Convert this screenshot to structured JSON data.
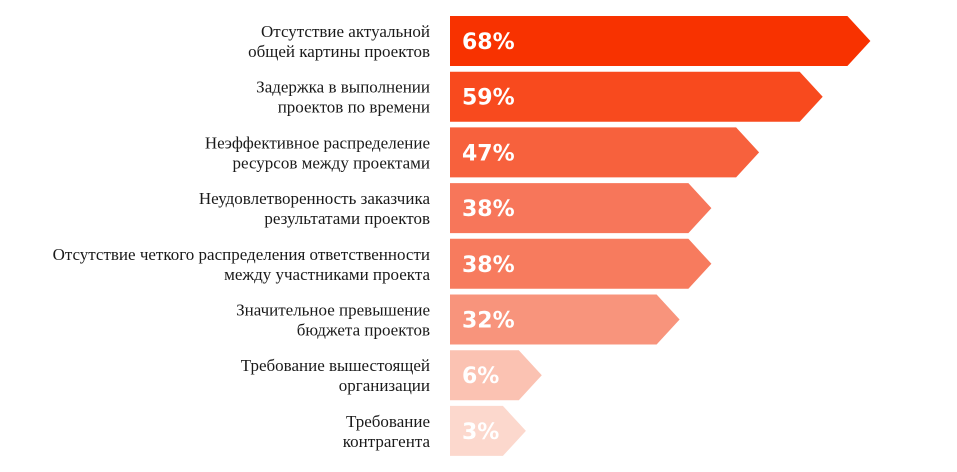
{
  "chart_data": {
    "type": "arrow-bar",
    "categories": [
      [
        "Отсутствие актуальной",
        "общей картины проектов"
      ],
      [
        "Задержка в выполнении",
        "проектов по времени"
      ],
      [
        "Неэффективное распределение",
        "ресурсов между проектами"
      ],
      [
        "Неудовлетворенность заказчика",
        "результатами проектов"
      ],
      [
        "Отсутствие четкого распределения ответственности",
        "между участниками проекта"
      ],
      [
        "Значительное превышение",
        "бюджета проектов"
      ],
      [
        "Требование вышестоящей",
        "организации"
      ],
      [
        "Требование",
        "контрагента"
      ]
    ],
    "values": [
      68,
      59,
      47,
      38,
      38,
      32,
      6,
      3
    ],
    "value_labels": [
      "68%",
      "59%",
      "47%",
      "38%",
      "38%",
      "32%",
      "6%",
      "3%"
    ],
    "colors": [
      "#f83200",
      "#f84a1e",
      "#f7613d",
      "#f7765a",
      "#f77b5e",
      "#f8947c",
      "#fbc2b2",
      "#fcd8cd"
    ]
  }
}
